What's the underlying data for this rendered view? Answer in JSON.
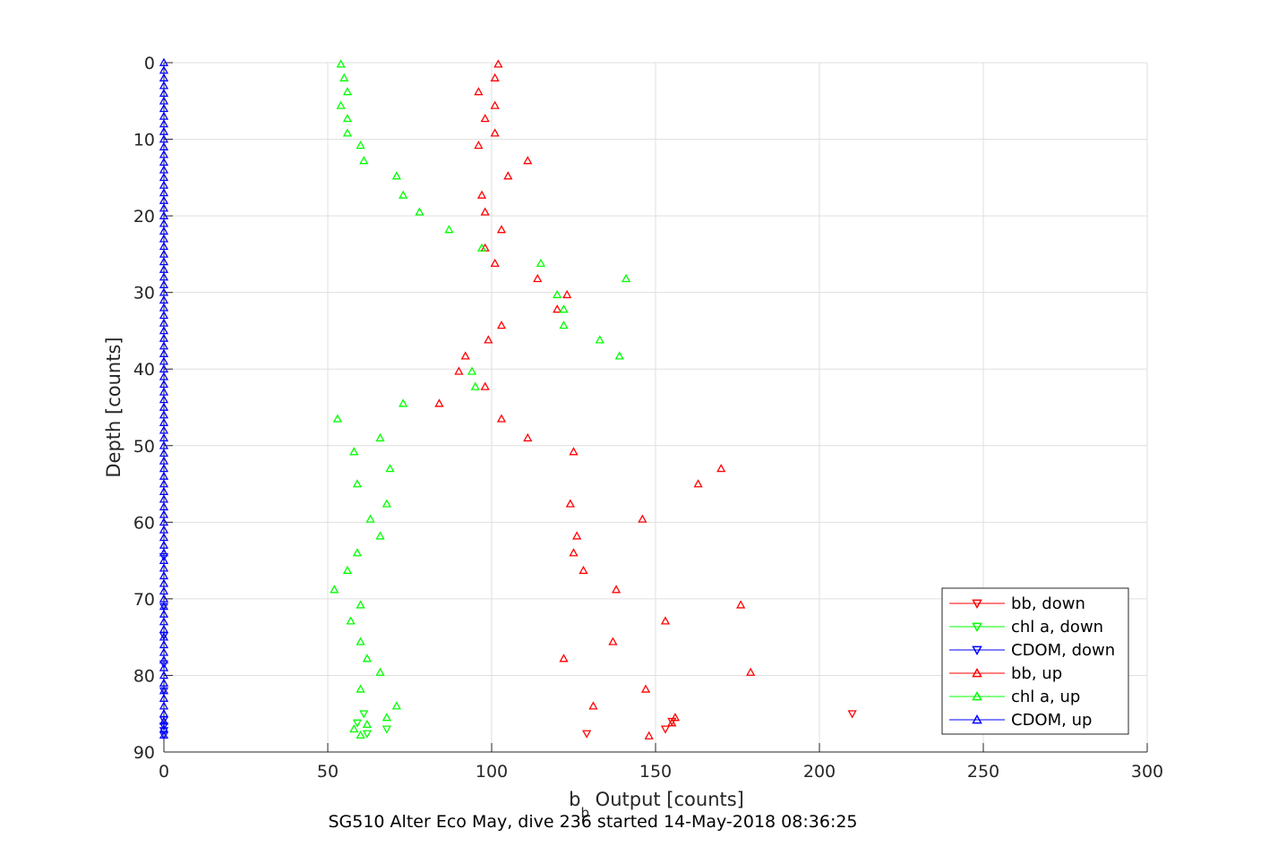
{
  "caption": "SG510 Alter Eco May, dive 236 started 14-May-2018 08:36:25",
  "chart_data": {
    "type": "scatter",
    "xlabel": "b_b Output [counts]",
    "xlabel_main": "b",
    "xlabel_sub": "b",
    "xlabel_rest": " Output [counts]",
    "ylabel": "Depth [counts]",
    "xlim": [
      0,
      300
    ],
    "ylim": [
      0,
      90
    ],
    "y_reversed": true,
    "grid": true,
    "x_ticks": [
      0,
      50,
      100,
      150,
      200,
      250,
      300
    ],
    "y_ticks": [
      0,
      10,
      20,
      30,
      40,
      50,
      60,
      70,
      80,
      90
    ],
    "legend_position": "bottom-right",
    "series": [
      {
        "name": "bb, down",
        "color": "#ff0000",
        "marker": "triangle-down",
        "points": [
          [
            210,
            85
          ],
          [
            155,
            86
          ],
          [
            153,
            87
          ],
          [
            129,
            87.6
          ]
        ]
      },
      {
        "name": "chl a, down",
        "color": "#00ff00",
        "marker": "triangle-down",
        "points": [
          [
            61,
            85
          ],
          [
            59,
            86.2
          ],
          [
            68,
            87
          ],
          [
            62,
            87.6
          ]
        ]
      },
      {
        "name": "CDOM, down",
        "color": "#0000ff",
        "marker": "triangle-down",
        "points": [
          [
            0,
            64.5
          ],
          [
            0,
            71
          ],
          [
            0,
            74.8
          ],
          [
            0,
            78.5
          ],
          [
            0,
            82
          ],
          [
            0,
            85.8
          ],
          [
            0,
            86.6
          ],
          [
            0,
            87.2
          ],
          [
            0,
            87.8
          ]
        ]
      },
      {
        "name": "bb, up",
        "color": "#ff0000",
        "marker": "triangle-up",
        "points": [
          [
            102,
            0.2
          ],
          [
            101,
            2
          ],
          [
            96,
            3.8
          ],
          [
            101,
            5.6
          ],
          [
            98,
            7.3
          ],
          [
            101,
            9.2
          ],
          [
            96,
            10.8
          ],
          [
            111,
            12.8
          ],
          [
            105,
            14.8
          ],
          [
            97,
            17.3
          ],
          [
            98,
            19.5
          ],
          [
            103,
            21.8
          ],
          [
            98,
            24.2
          ],
          [
            101,
            26.2
          ],
          [
            114,
            28.2
          ],
          [
            123,
            30.3
          ],
          [
            120,
            32.2
          ],
          [
            103,
            34.3
          ],
          [
            99,
            36.2
          ],
          [
            92,
            38.3
          ],
          [
            90,
            40.3
          ],
          [
            98,
            42.3
          ],
          [
            84,
            44.5
          ],
          [
            103,
            46.5
          ],
          [
            111,
            49
          ],
          [
            125,
            50.8
          ],
          [
            170,
            53
          ],
          [
            163,
            55
          ],
          [
            124,
            57.6
          ],
          [
            146,
            59.6
          ],
          [
            126,
            61.8
          ],
          [
            125,
            64
          ],
          [
            128,
            66.3
          ],
          [
            138,
            68.8
          ],
          [
            176,
            70.8
          ],
          [
            153,
            72.9
          ],
          [
            137,
            75.6
          ],
          [
            122,
            77.8
          ],
          [
            179,
            79.6
          ],
          [
            147,
            81.8
          ],
          [
            131,
            84
          ],
          [
            156,
            85.5
          ],
          [
            155,
            86.2
          ],
          [
            148,
            87.9
          ]
        ]
      },
      {
        "name": "chl a, up",
        "color": "#00ff00",
        "marker": "triangle-up",
        "points": [
          [
            54,
            0.2
          ],
          [
            55,
            2
          ],
          [
            56,
            3.8
          ],
          [
            54,
            5.6
          ],
          [
            56,
            7.3
          ],
          [
            56,
            9.2
          ],
          [
            60,
            10.8
          ],
          [
            61,
            12.8
          ],
          [
            71,
            14.8
          ],
          [
            73,
            17.3
          ],
          [
            78,
            19.5
          ],
          [
            87,
            21.8
          ],
          [
            97,
            24.2
          ],
          [
            115,
            26.2
          ],
          [
            141,
            28.2
          ],
          [
            120,
            30.3
          ],
          [
            122,
            32.2
          ],
          [
            122,
            34.3
          ],
          [
            133,
            36.2
          ],
          [
            139,
            38.3
          ],
          [
            94,
            40.3
          ],
          [
            95,
            42.3
          ],
          [
            73,
            44.5
          ],
          [
            53,
            46.5
          ],
          [
            66,
            49
          ],
          [
            58,
            50.8
          ],
          [
            69,
            53
          ],
          [
            59,
            55
          ],
          [
            68,
            57.6
          ],
          [
            63,
            59.6
          ],
          [
            66,
            61.8
          ],
          [
            59,
            64
          ],
          [
            56,
            66.3
          ],
          [
            52,
            68.8
          ],
          [
            60,
            70.8
          ],
          [
            57,
            72.9
          ],
          [
            60,
            75.6
          ],
          [
            62,
            77.8
          ],
          [
            66,
            79.6
          ],
          [
            60,
            81.8
          ],
          [
            71,
            84
          ],
          [
            68,
            85.5
          ],
          [
            62,
            86.4
          ],
          [
            58,
            87
          ],
          [
            60,
            87.8
          ]
        ]
      },
      {
        "name": "CDOM, up",
        "color": "#0000ff",
        "marker": "triangle-up",
        "points": [
          [
            0,
            0
          ],
          [
            0,
            1
          ],
          [
            0,
            2
          ],
          [
            0,
            3
          ],
          [
            0,
            4
          ],
          [
            0,
            5
          ],
          [
            0,
            6
          ],
          [
            0,
            7
          ],
          [
            0,
            8
          ],
          [
            0,
            9
          ],
          [
            0,
            10
          ],
          [
            0,
            11
          ],
          [
            0,
            12
          ],
          [
            0,
            13
          ],
          [
            0,
            14
          ],
          [
            0,
            15
          ],
          [
            0,
            16
          ],
          [
            0,
            17
          ],
          [
            0,
            18
          ],
          [
            0,
            19
          ],
          [
            0,
            20
          ],
          [
            0,
            21
          ],
          [
            0,
            22
          ],
          [
            0,
            23
          ],
          [
            0,
            24
          ],
          [
            0,
            25
          ],
          [
            0,
            26
          ],
          [
            0,
            27
          ],
          [
            0,
            28
          ],
          [
            0,
            29
          ],
          [
            0,
            30
          ],
          [
            0,
            31
          ],
          [
            0,
            32
          ],
          [
            0,
            33
          ],
          [
            0,
            34
          ],
          [
            0,
            35
          ],
          [
            0,
            36
          ],
          [
            0,
            37
          ],
          [
            0,
            38
          ],
          [
            0,
            39
          ],
          [
            0,
            40
          ],
          [
            0,
            41
          ],
          [
            0,
            42
          ],
          [
            0,
            43
          ],
          [
            0,
            44
          ],
          [
            0,
            45
          ],
          [
            0,
            46
          ],
          [
            0,
            47
          ],
          [
            0,
            48
          ],
          [
            0,
            49
          ],
          [
            0,
            50
          ],
          [
            0,
            51
          ],
          [
            0,
            52
          ],
          [
            0,
            53
          ],
          [
            0,
            54
          ],
          [
            0,
            55
          ],
          [
            0,
            56
          ],
          [
            0,
            57
          ],
          [
            0,
            58
          ],
          [
            0,
            59
          ],
          [
            0,
            60
          ],
          [
            0,
            61
          ],
          [
            0,
            62
          ],
          [
            0,
            63
          ],
          [
            0,
            64
          ],
          [
            0,
            65
          ],
          [
            0,
            66
          ],
          [
            0,
            67
          ],
          [
            0,
            68
          ],
          [
            0,
            69
          ],
          [
            0,
            70
          ],
          [
            0,
            71
          ],
          [
            0,
            72
          ],
          [
            0,
            73
          ],
          [
            0,
            74
          ],
          [
            0,
            75
          ],
          [
            0,
            76
          ],
          [
            0,
            77
          ],
          [
            0,
            78
          ],
          [
            0,
            79
          ],
          [
            0,
            80
          ],
          [
            0,
            81
          ],
          [
            0,
            82
          ],
          [
            0,
            83
          ],
          [
            0,
            84
          ],
          [
            0,
            85
          ],
          [
            0,
            86
          ],
          [
            0,
            87
          ],
          [
            0,
            87.8
          ]
        ]
      }
    ]
  }
}
